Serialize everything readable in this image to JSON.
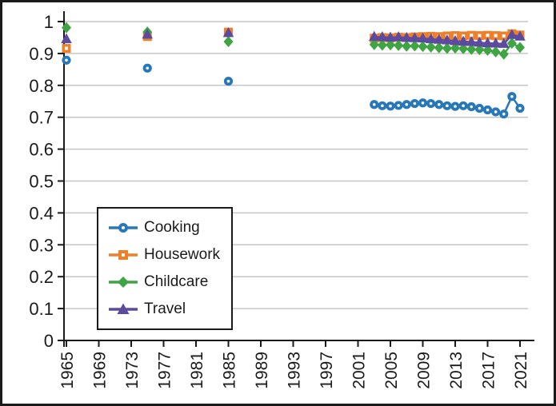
{
  "figure": {
    "background": "#ffffff",
    "frame_color": "#1a1a1a",
    "axis_color": "#1a1a1a",
    "grid_color": "#c6c6c6",
    "tick_label_color": "#1a1a1a"
  },
  "chart_data": {
    "type": "line",
    "title": "",
    "xlabel": "",
    "ylabel": "",
    "ylim": [
      0,
      1
    ],
    "xlim": [
      1964,
      2022.5
    ],
    "grid": "horizontal gridlines only",
    "legend_position": "inside lower-left, boxed",
    "x_ticks": [
      1965,
      1969,
      1973,
      1977,
      1981,
      1985,
      1989,
      1993,
      1997,
      2001,
      2005,
      2009,
      2013,
      2017,
      2021
    ],
    "x_tick_labels": [
      "1965",
      "1969",
      "1973",
      "1977",
      "1981",
      "1985",
      "1989",
      "1993",
      "1997",
      "2001",
      "2005",
      "2009",
      "2013",
      "2017",
      "2021"
    ],
    "x_tick_label_rotation_deg": -90,
    "y_ticks": [
      0,
      0.1,
      0.2,
      0.3,
      0.4,
      0.5,
      0.6,
      0.7,
      0.8,
      0.9,
      1
    ],
    "y_tick_labels": [
      "0",
      "0.1",
      "0.2",
      "0.3",
      "0.4",
      "0.5",
      "0.6",
      "0.7",
      "0.8",
      "0.9",
      "1"
    ],
    "survey_years": [
      1965,
      1975,
      1985
    ],
    "annual_years": [
      2003,
      2004,
      2005,
      2006,
      2007,
      2008,
      2009,
      2010,
      2011,
      2012,
      2013,
      2014,
      2015,
      2016,
      2017,
      2018,
      2019,
      2020,
      2021
    ],
    "series": [
      {
        "name": "Cooking",
        "color": "#2878b8",
        "marker": "circle",
        "survey_values": [
          0.879,
          0.854,
          0.813
        ],
        "annual_values": [
          0.74,
          0.736,
          0.735,
          0.737,
          0.74,
          0.743,
          0.745,
          0.743,
          0.74,
          0.736,
          0.734,
          0.736,
          0.733,
          0.728,
          0.723,
          0.717,
          0.71,
          0.765,
          0.728
        ]
      },
      {
        "name": "Housework",
        "color": "#ef7f28",
        "marker": "square",
        "survey_values": [
          0.916,
          0.953,
          0.967
        ],
        "annual_values": [
          0.948,
          0.95,
          0.949,
          0.951,
          0.95,
          0.952,
          0.953,
          0.954,
          0.953,
          0.955,
          0.956,
          0.955,
          0.957,
          0.956,
          0.957,
          0.956,
          0.955,
          0.962,
          0.958
        ]
      },
      {
        "name": "Childcare",
        "color": "#3fa443",
        "marker": "diamond",
        "survey_values": [
          0.981,
          0.967,
          0.937
        ],
        "annual_values": [
          0.928,
          0.926,
          0.927,
          0.925,
          0.923,
          0.924,
          0.922,
          0.92,
          0.918,
          0.916,
          0.917,
          0.915,
          0.913,
          0.912,
          0.91,
          0.905,
          0.898,
          0.932,
          0.919
        ]
      },
      {
        "name": "Travel",
        "color": "#5c4a9e",
        "marker": "triangle",
        "survey_values": [
          0.945,
          0.959,
          0.964
        ],
        "annual_values": [
          0.952,
          0.951,
          0.95,
          0.951,
          0.949,
          0.948,
          0.947,
          0.945,
          0.943,
          0.941,
          0.939,
          0.937,
          0.936,
          0.934,
          0.932,
          0.931,
          0.93,
          0.958,
          0.953
        ]
      }
    ]
  },
  "legend": {
    "items": [
      {
        "label": "Cooking"
      },
      {
        "label": "Housework"
      },
      {
        "label": "Childcare"
      },
      {
        "label": "Travel"
      }
    ]
  }
}
